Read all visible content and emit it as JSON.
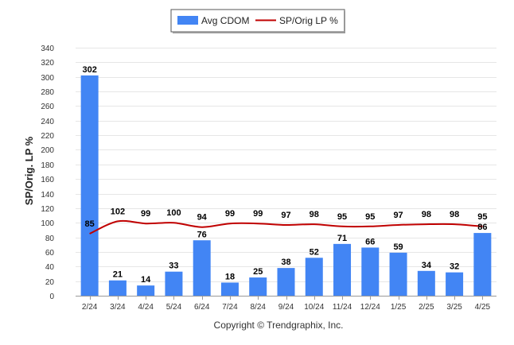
{
  "chart_data": {
    "type": "bar",
    "categories": [
      "2/24",
      "3/24",
      "4/24",
      "5/24",
      "6/24",
      "7/24",
      "8/24",
      "9/24",
      "10/24",
      "11/24",
      "12/24",
      "1/25",
      "2/25",
      "3/25",
      "4/25"
    ],
    "series": [
      {
        "name": "Avg CDOM",
        "type": "bar",
        "color": "#4285F4",
        "values": [
          302,
          21,
          14,
          33,
          76,
          18,
          25,
          38,
          52,
          71,
          66,
          59,
          34,
          32,
          86
        ]
      },
      {
        "name": "SP/Orig LP %",
        "type": "line",
        "color": "#C00000",
        "values": [
          85,
          102,
          99,
          100,
          94,
          99,
          99,
          97,
          98,
          95,
          95,
          97,
          98,
          98,
          95
        ]
      }
    ],
    "ylabel": "SP/Orig. LP %",
    "xlabel": "",
    "ylim": [
      0,
      340
    ],
    "yticks": [
      0,
      20,
      40,
      60,
      80,
      100,
      120,
      140,
      160,
      180,
      200,
      220,
      240,
      260,
      280,
      300,
      320,
      340
    ],
    "grid": true,
    "legend_position": "top-center"
  },
  "footer": {
    "copyright": "Copyright © Trendgraphix, Inc."
  }
}
